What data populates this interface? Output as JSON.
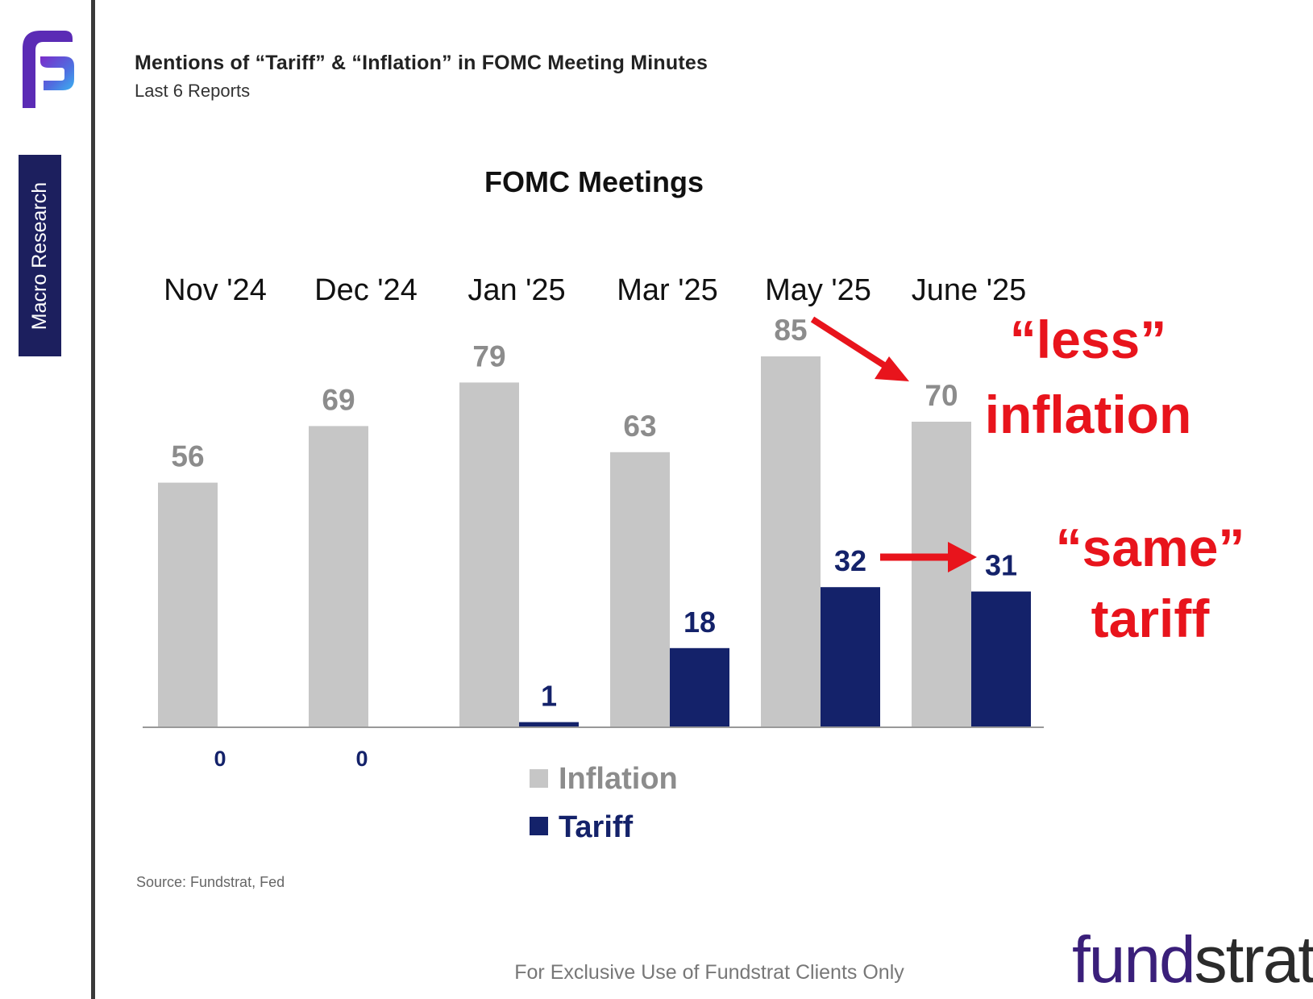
{
  "header": {
    "title": "Mentions of “Tariff” & “Inflation” in FOMC Meeting Minutes",
    "subtitle": "Last 6 Reports"
  },
  "sidebar": {
    "section_label": "Macro Research"
  },
  "brand": {
    "name_part1": "fund",
    "name_part2": "strat"
  },
  "source": "Source: Fundstrat, Fed",
  "footer": "For Exclusive Use of Fundstrat Clients Only",
  "annotations": [
    {
      "line1": "“less”",
      "line2": "inflation",
      "color": "#e8141c"
    },
    {
      "line1": "“same”",
      "line2": "tariff",
      "color": "#e8141c"
    }
  ],
  "colors": {
    "inflation": "#c6c6c6",
    "tariff": "#14226a",
    "annotation": "#e8141c",
    "inflation_label": "#8c8c8c"
  },
  "chart_data": {
    "type": "bar",
    "title": "FOMC Meetings",
    "categories": [
      "Nov '24",
      "Dec '24",
      "Jan '25",
      "Mar  '25",
      "May '25",
      "June '25"
    ],
    "series": [
      {
        "name": "Inflation",
        "values": [
          56,
          69,
          79,
          63,
          85,
          70
        ]
      },
      {
        "name": "Tariff",
        "values": [
          0,
          0,
          1,
          18,
          32,
          31
        ]
      }
    ],
    "xlabel": "",
    "ylabel": "",
    "ylim": [
      0,
      85
    ],
    "grid": false,
    "legend": "bottom-center"
  }
}
